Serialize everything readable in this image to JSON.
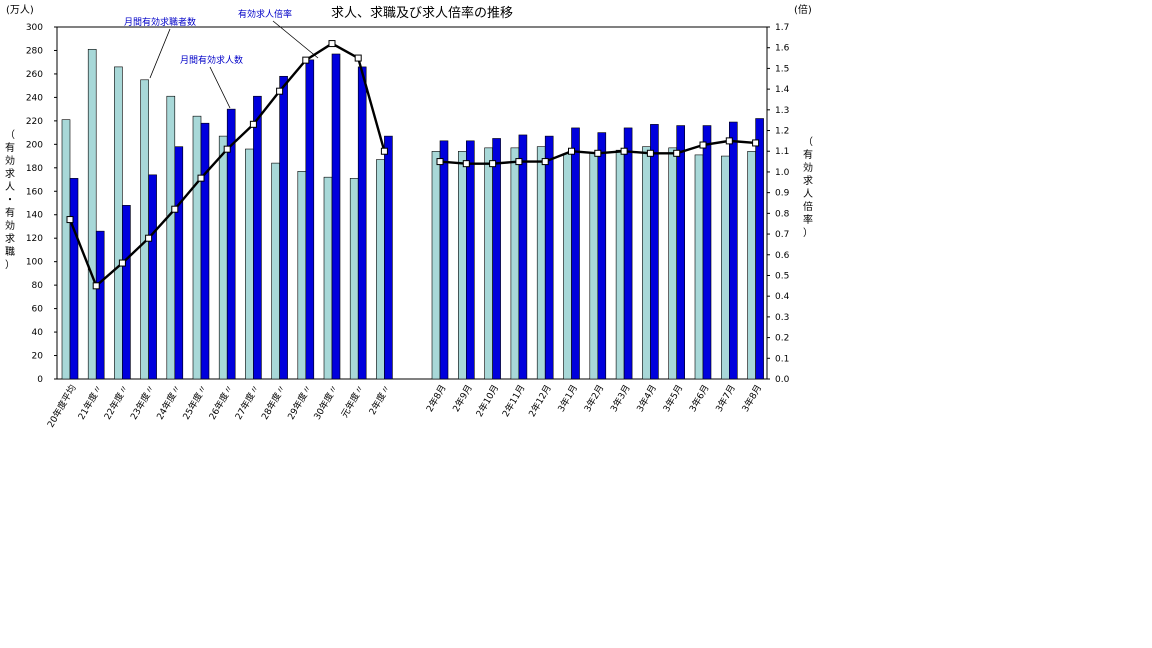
{
  "chart_data": {
    "type": "bar",
    "title": "求人、求職及び求人倍率の推移",
    "left_unit": "(万人)",
    "right_unit": "(倍)",
    "left_axis_label": [
      "（",
      "有",
      "効",
      "求",
      "人",
      "・",
      "有",
      "効",
      "求",
      "職",
      "）"
    ],
    "right_axis_label": [
      "（",
      "有",
      "効",
      "求",
      "人",
      "倍",
      "率",
      "）"
    ],
    "ylim_left": [
      0,
      300
    ],
    "ylim_right": [
      0,
      1.7
    ],
    "yticks_left": [
      "0",
      "20",
      "40",
      "60",
      "80",
      "100",
      "120",
      "140",
      "160",
      "180",
      "200",
      "220",
      "240",
      "260",
      "280",
      "300"
    ],
    "yticks_right": [
      "0.0",
      "0.1",
      "0.2",
      "0.3",
      "0.4",
      "0.5",
      "0.6",
      "0.7",
      "0.8",
      "0.9",
      "1.0",
      "1.1",
      "1.2",
      "1.3",
      "1.4",
      "1.5",
      "1.6",
      "1.7"
    ],
    "categories": [
      "20年度平均",
      "21年度〃",
      "22年度〃",
      "23年度〃",
      "24年度〃",
      "25年度〃",
      "26年度〃",
      "27年度〃",
      "28年度〃",
      "29年度〃",
      "30年度〃",
      "元年度〃",
      "2年度〃",
      "2年8月",
      "2年9月",
      "2年10月",
      "2年11月",
      "2年12月",
      "3年1月",
      "3年2月",
      "3年3月",
      "3年4月",
      "3年5月",
      "3年6月",
      "3年7月",
      "3年8月"
    ],
    "group_break_after": 12,
    "series": [
      {
        "name": "月間有効求職者数",
        "kind": "bar",
        "color": "#a8d8d8",
        "values": [
          221,
          281,
          266,
          255,
          241,
          224,
          207,
          196,
          184,
          177,
          172,
          171,
          187,
          194,
          194,
          197,
          197,
          198,
          192,
          193,
          195,
          198,
          197,
          191,
          190,
          194
        ]
      },
      {
        "name": "月間有効求人数",
        "kind": "bar",
        "color": "#0000dd",
        "values": [
          171,
          126,
          148,
          174,
          198,
          218,
          230,
          241,
          258,
          272,
          277,
          266,
          207,
          203,
          203,
          205,
          208,
          207,
          214,
          210,
          214,
          217,
          216,
          216,
          219,
          222
        ]
      },
      {
        "name": "有効求人倍率",
        "kind": "line",
        "axis": "right",
        "color": "#000000",
        "values": [
          0.77,
          0.45,
          0.56,
          0.68,
          0.82,
          0.97,
          1.11,
          1.23,
          1.39,
          1.54,
          1.62,
          1.55,
          1.1,
          1.05,
          1.04,
          1.04,
          1.05,
          1.05,
          1.1,
          1.09,
          1.1,
          1.09,
          1.09,
          1.13,
          1.15,
          1.14
        ]
      }
    ],
    "annotations": [
      {
        "text": "月間有効求職者数",
        "series": 0,
        "point": 3
      },
      {
        "text": "月間有効求人数",
        "series": 1,
        "point": 6
      },
      {
        "text": "有効求人倍率",
        "series": 2,
        "point": 9
      }
    ],
    "grid": false,
    "legend": "none"
  }
}
